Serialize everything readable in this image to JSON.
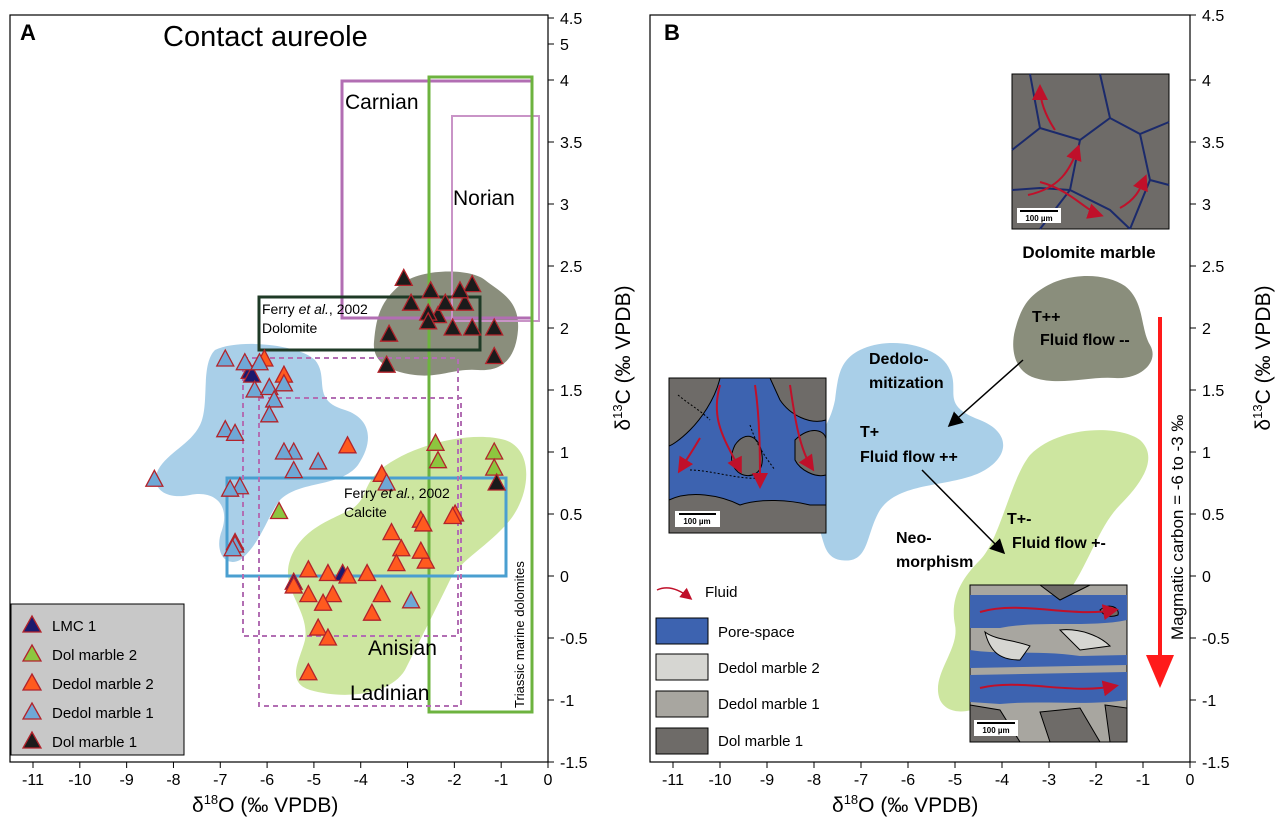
{
  "chart_data": [
    {
      "panel": "A",
      "type": "scatter",
      "title": "Contact aureole",
      "xlabel": "δ18O (‰ VPDB)",
      "ylabel": "δ13C (‰ VPDB)",
      "xlim": [
        -11.3,
        0
      ],
      "ylim": [
        -1.5,
        4.5
      ],
      "x_ticks": [
        "-11",
        "-10",
        "-9",
        "-8",
        "-7",
        "-6",
        "-5",
        "-4",
        "-3",
        "-2",
        "-1",
        "0"
      ],
      "y_ticks": [
        "-1.5",
        "-1",
        "-0.5",
        "0",
        "0.5",
        "1",
        "1.5",
        "2",
        "2.5",
        "3",
        "3.5",
        "4",
        "4.5",
        "5"
      ],
      "legend_position": "bottom-left",
      "series": [
        {
          "name": "LMC 1",
          "color": "#1a1a6e",
          "points": [
            [
              -6.1,
              1.65
            ],
            [
              -6.05,
              1.62
            ],
            [
              -4.2,
              0.02
            ],
            [
              -5.2,
              -0.05
            ]
          ]
        },
        {
          "name": "Dol marble 2",
          "color": "#8dc63f",
          "points": [
            [
              -2.3,
              1.07
            ],
            [
              -2.25,
              0.93
            ],
            [
              -1.1,
              1.0
            ],
            [
              -1.1,
              0.87
            ],
            [
              -5.5,
              0.52
            ],
            [
              -6.4,
              0.27
            ]
          ]
        },
        {
          "name": "Dedol marble 2",
          "color": "#ff5a1f",
          "points": [
            [
              -5.8,
              1.75
            ],
            [
              -5.4,
              1.62
            ],
            [
              -4.1,
              1.05
            ],
            [
              -3.4,
              0.82
            ],
            [
              -2.6,
              0.45
            ],
            [
              -2.55,
              0.42
            ],
            [
              -3.2,
              0.35
            ],
            [
              -3.0,
              0.22
            ],
            [
              -2.5,
              0.12
            ],
            [
              -1.9,
              0.5
            ],
            [
              -1.95,
              0.48
            ],
            [
              -3.1,
              0.1
            ],
            [
              -2.6,
              0.2
            ],
            [
              -4.9,
              0.05
            ],
            [
              -4.5,
              0.02
            ],
            [
              -4.1,
              0.0
            ],
            [
              -3.7,
              0.02
            ],
            [
              -5.2,
              -0.08
            ],
            [
              -4.9,
              -0.15
            ],
            [
              -4.4,
              -0.15
            ],
            [
              -3.4,
              -0.15
            ],
            [
              -4.6,
              -0.22
            ],
            [
              -3.6,
              -0.3
            ],
            [
              -4.7,
              -0.42
            ],
            [
              -4.5,
              -0.5
            ],
            [
              -4.9,
              -0.78
            ]
          ]
        },
        {
          "name": "Dedol marble 1",
          "color": "#6fa8d6",
          "points": [
            [
              -6.6,
              1.75
            ],
            [
              -6.2,
              1.72
            ],
            [
              -5.9,
              1.72
            ],
            [
              -6.0,
              1.5
            ],
            [
              -5.7,
              1.52
            ],
            [
              -5.4,
              1.55
            ],
            [
              -5.6,
              1.42
            ],
            [
              -5.7,
              1.3
            ],
            [
              -5.2,
              1.0
            ],
            [
              -5.4,
              1.0
            ],
            [
              -6.6,
              1.18
            ],
            [
              -6.4,
              1.15
            ],
            [
              -4.7,
              0.92
            ],
            [
              -3.3,
              0.75
            ],
            [
              -6.3,
              0.72
            ],
            [
              -6.5,
              0.7
            ],
            [
              -8.05,
              0.78
            ],
            [
              -6.4,
              0.25
            ],
            [
              -6.45,
              0.22
            ],
            [
              -5.2,
              0.85
            ],
            [
              -2.8,
              -0.2
            ]
          ]
        },
        {
          "name": "Dol marble 1",
          "color": "#1b1b1b",
          "points": [
            [
              -2.95,
              2.4
            ],
            [
              -2.4,
              2.3
            ],
            [
              -1.55,
              2.35
            ],
            [
              -1.7,
              2.2
            ],
            [
              -2.25,
              2.1
            ],
            [
              -2.45,
              2.12
            ],
            [
              -2.8,
              2.2
            ],
            [
              -1.8,
              2.3
            ],
            [
              -2.1,
              2.2
            ],
            [
              -1.55,
              2.0
            ],
            [
              -1.95,
              2.0
            ],
            [
              -1.1,
              2.0
            ],
            [
              -3.25,
              1.95
            ],
            [
              -2.45,
              2.05
            ],
            [
              -3.3,
              1.7
            ],
            [
              -1.1,
              1.77
            ],
            [
              -1.05,
              0.75
            ]
          ]
        }
      ],
      "fields": [
        {
          "label": "Carnian",
          "x": [
            -4.3,
            -0.3
          ],
          "y": [
            1.15,
            3.95
          ],
          "color": "#b26eb3"
        },
        {
          "label": "Norian",
          "x": [
            -2.0,
            -0.15
          ],
          "y": [
            2.05,
            3.7
          ],
          "color": "#c994c7"
        },
        {
          "label": "Triassic marine dolomites",
          "x": [
            -2.5,
            -0.3
          ],
          "y": [
            -1.08,
            4.0
          ],
          "color": "#6db33f"
        },
        {
          "label": "Ferry et al., 2002 Dolomite",
          "x": [
            -6.0,
            -1.2
          ],
          "y": [
            1.8,
            2.25
          ],
          "color": "#1e3a26"
        },
        {
          "label": "Ferry et al., 2002 Calcite",
          "x": [
            -6.4,
            -0.9
          ],
          "y": [
            0.0,
            0.78
          ],
          "color": "#4a9fd0"
        },
        {
          "label": "Anisian",
          "x": [
            -6.4,
            -1.7
          ],
          "y": [
            -0.48,
            1.75
          ],
          "color": "#b26eb3",
          "dashed": true
        },
        {
          "label": "Ladinian",
          "x": [
            -5.9,
            -1.7
          ],
          "y": [
            -1.05,
            1.42
          ],
          "color": "#b26eb3",
          "dashed": true
        }
      ],
      "colors": {
        "dedol_field": "#a9cfe8",
        "neomorph_field": "#cde6a0",
        "dol_field": "#8a8e7c"
      }
    },
    {
      "panel": "B",
      "type": "diagram",
      "xlabel": "δ18O (‰ VPDB)",
      "ylabel": "δ13C (‰ VPDB)",
      "xlim": [
        -11.3,
        0
      ],
      "ylim": [
        -1.5,
        4.5
      ],
      "x_ticks": [
        "-11",
        "-10",
        "-9",
        "-8",
        "-7",
        "-6",
        "-5",
        "-4",
        "-3",
        "-2",
        "-1",
        "0"
      ],
      "y_ticks": [
        "-1.5",
        "-1",
        "-0.5",
        "0",
        "0.5",
        "1",
        "1.5",
        "2",
        "2.5",
        "3",
        "3.5",
        "4",
        "4.5"
      ],
      "annotations": {
        "dolomite": "Dolomite marble",
        "t_pp": "T++",
        "flow_mm": "Fluid flow --",
        "dedolo_1": "Dedolo-",
        "dedolo_2": "mitization",
        "t_p": "T+",
        "flow_pp": "Fluid flow ++",
        "neo_1": "Neo-",
        "neo_2": "morphism",
        "t_pm": "T+-",
        "flow_pm": "Fluid flow +-",
        "magmatic": "Magmatic carbon = -6 to -3 ‰",
        "scale": "100 µm"
      },
      "legend": [
        {
          "name": "Fluid",
          "color": "#c0102a"
        },
        {
          "name": "Pore-space",
          "color": "#3d63b0"
        },
        {
          "name": "Dedol marble 2",
          "color": "#d6d6d2"
        },
        {
          "name": "Dedol marble 1",
          "color": "#a8a6a0"
        },
        {
          "name": "Dol marble 1",
          "color": "#6e6b68"
        }
      ]
    }
  ],
  "labels": {
    "panel_a": "A",
    "panel_b": "B",
    "xlab_pre": "δ",
    "xlab_sup": "18",
    "xlab_post": "O (‰ VPDB)",
    "ylab_pre": "δ",
    "ylab_sup": "13",
    "ylab_post": "C (‰ VPDB)",
    "ferry_1": "Ferry ",
    "ferry_et": "et al.",
    "ferry_2": ", 2002",
    "dolomite": "Dolomite",
    "calcite": "Calcite"
  }
}
